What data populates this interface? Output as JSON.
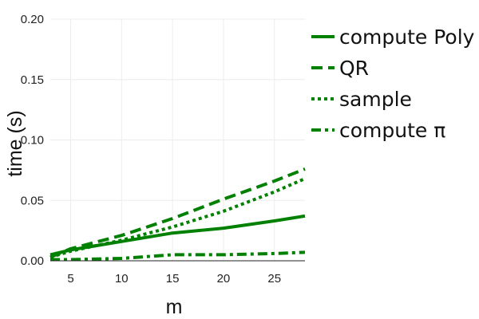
{
  "chart_data": {
    "type": "line",
    "title": "",
    "xlabel": "m",
    "ylabel": "time (s)",
    "xlim": [
      3,
      28
    ],
    "ylim": [
      0,
      0.2
    ],
    "x_ticks": [
      5,
      10,
      15,
      20,
      25
    ],
    "y_ticks": [
      0,
      0.05,
      0.1,
      0.15,
      0.2
    ],
    "y_tick_labels": [
      "0.00",
      "0.05",
      "0.10",
      "0.15",
      "0.20"
    ],
    "grid": true,
    "legend_position": "right",
    "series": [
      {
        "name": "compute Poly",
        "style": "solid",
        "color": "#008000",
        "x": [
          3,
          5,
          10,
          15,
          20,
          25,
          28
        ],
        "y": [
          0.005,
          0.009,
          0.016,
          0.023,
          0.027,
          0.033,
          0.037
        ]
      },
      {
        "name": "QR",
        "style": "dash",
        "color": "#008000",
        "x": [
          3,
          5,
          10,
          15,
          20,
          25,
          28
        ],
        "y": [
          0.003,
          0.01,
          0.021,
          0.035,
          0.051,
          0.066,
          0.076
        ]
      },
      {
        "name": "sample",
        "style": "dot",
        "color": "#008000",
        "x": [
          3,
          5,
          10,
          15,
          20,
          25,
          28
        ],
        "y": [
          0.003,
          0.008,
          0.017,
          0.028,
          0.041,
          0.057,
          0.068
        ]
      },
      {
        "name": "compute π",
        "style": "dashdot",
        "color": "#008000",
        "x": [
          3,
          5,
          10,
          15,
          20,
          25,
          28
        ],
        "y": [
          0.001,
          0.001,
          0.002,
          0.005,
          0.005,
          0.006,
          0.007
        ]
      }
    ]
  }
}
